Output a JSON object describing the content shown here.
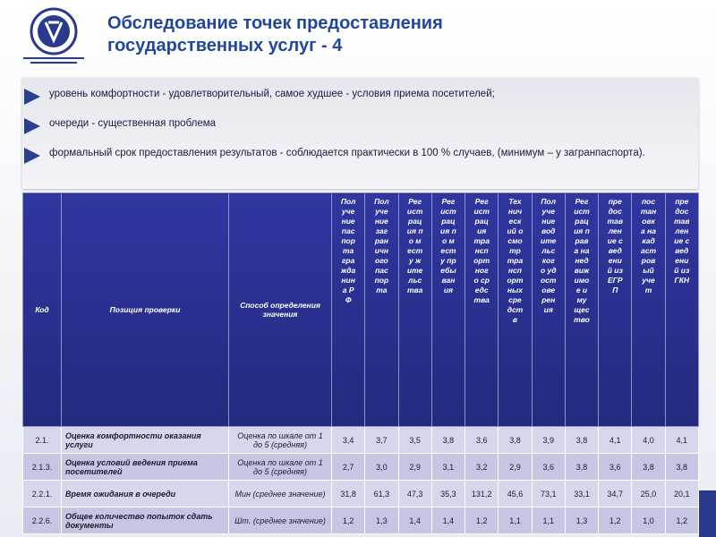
{
  "header": {
    "title": "Обследование точек предоставления государственных услуг - 4"
  },
  "bullets": [
    "уровень комфортности - удовлетворительный, самое худшее - условия приема посетителей;",
    "очереди - существенная проблема",
    "формальный срок предоставления результатов - соблюдается практически в 100 % случаев, (минимум – у загранпаспорта)."
  ],
  "table": {
    "columns": [
      "Код",
      "Позиция проверки",
      "Способ определения значения",
      "Получение паспорта гражданина РФ",
      "Получение заграничного паспорта",
      "Регистрация по месту жительства",
      "Регистрация по месту пребывания",
      "Регистрация транспортного средства",
      "Технический осмотр транспортных средств",
      "Получение водительского удостоверения",
      "Регистрация права на недвижимое имущество",
      "предоставление сведений из ЕГРП",
      "постановка на кадастровый учет",
      "предоставление сведений из ГКН"
    ],
    "rows": [
      [
        "2.1.",
        "Оценка комфортности оказания услуги",
        "Оценка по шкале от 1 до 5 (средняя)",
        "3,4",
        "3,7",
        "3,5",
        "3,8",
        "3,6",
        "3,8",
        "3,9",
        "3,8",
        "4,1",
        "4,0",
        "4,1"
      ],
      [
        "2.1.3.",
        "Оценка условий ведения приема посетителей",
        "Оценка по шкале от 1 до 5 (средняя)",
        "2,7",
        "3,0",
        "2,9",
        "3,1",
        "3,2",
        "2,9",
        "3,6",
        "3,8",
        "3,6",
        "3,8",
        "3,8"
      ],
      [
        "2.2.1.",
        "Время ожидания в очереди",
        "Мин (среднее значение)",
        "31,8",
        "61,3",
        "47,3",
        "35,3",
        "131,2",
        "45,6",
        "73,1",
        "33,1",
        "34,7",
        "25,0",
        "20,1"
      ],
      [
        "2.2.6.",
        "Общее количество попыток сдать документы",
        "Шт. (среднее значение)",
        "1,2",
        "1,3",
        "1,4",
        "1,4",
        "1,2",
        "1,1",
        "1,1",
        "1,3",
        "1,2",
        "1,0",
        "1,2"
      ]
    ]
  }
}
